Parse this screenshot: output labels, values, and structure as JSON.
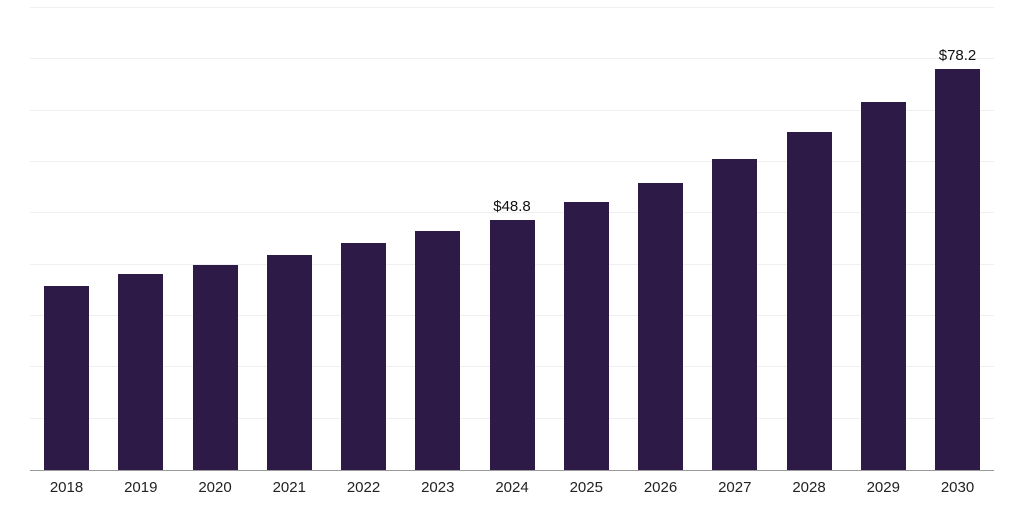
{
  "chart_data": {
    "type": "bar",
    "title": "",
    "xlabel": "",
    "ylabel": "",
    "categories": [
      "2018",
      "2019",
      "2020",
      "2021",
      "2022",
      "2023",
      "2024",
      "2025",
      "2026",
      "2027",
      "2028",
      "2029",
      "2030"
    ],
    "values": [
      35.8,
      38.2,
      39.9,
      41.9,
      44.2,
      46.5,
      48.8,
      52.3,
      56.0,
      60.6,
      65.8,
      71.6,
      78.2
    ],
    "data_labels": {
      "2024": "$48.8",
      "2030": "$78.2"
    },
    "ylim": [
      0,
      90
    ],
    "grid_step": 10,
    "grid": true,
    "legend": false,
    "y_tick_labels_visible": false,
    "bar_color": "#2e1a47",
    "background_color": "#ffffff",
    "gridline_color": "#efefef",
    "axis_line_color": "#9a9a9a",
    "value_label_color": "#111111",
    "tick_label_color": "#222222"
  }
}
